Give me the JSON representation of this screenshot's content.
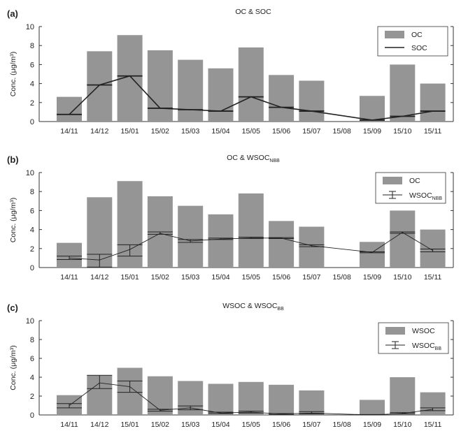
{
  "chart_data": [
    {
      "type": "bar",
      "panel_label": "(a)",
      "title": "OC & SOC",
      "ylabel": "Conc. (μg/m³)",
      "xlabel": "",
      "ylim": [
        0,
        10
      ],
      "yticks": [
        0,
        2,
        4,
        6,
        8,
        10
      ],
      "categories": [
        "14/11",
        "14/12",
        "15/01",
        "15/02",
        "15/03",
        "15/04",
        "15/05",
        "15/06",
        "15/07",
        "15/08",
        "15/09",
        "15/10",
        "15/11"
      ],
      "legend_position": "top-right",
      "grid": false,
      "series": [
        {
          "name": "OC",
          "kind": "bar",
          "color": "#959595",
          "values": [
            2.6,
            7.4,
            9.1,
            7.5,
            6.5,
            5.6,
            7.8,
            4.9,
            4.3,
            null,
            2.7,
            6.0,
            4.0
          ]
        },
        {
          "name": "SOC",
          "kind": "line",
          "color": "#222222",
          "values": [
            0.75,
            3.85,
            4.8,
            1.4,
            1.25,
            1.1,
            2.6,
            1.5,
            1.1,
            null,
            0.15,
            0.55,
            1.1
          ]
        }
      ]
    },
    {
      "type": "bar",
      "panel_label": "(b)",
      "title": "OC & WSOC",
      "title_subscript": "NBB",
      "ylabel": "Conc. (μg/m³)",
      "xlabel": "",
      "ylim": [
        0,
        10
      ],
      "yticks": [
        0,
        2,
        4,
        6,
        8,
        10
      ],
      "categories": [
        "14/11",
        "14/12",
        "15/01",
        "15/02",
        "15/03",
        "15/04",
        "15/05",
        "15/06",
        "15/07",
        "15/08",
        "15/09",
        "15/10",
        "15/11"
      ],
      "legend_position": "top-right",
      "grid": false,
      "series": [
        {
          "name": "OC",
          "kind": "bar",
          "color": "#959595",
          "values": [
            2.6,
            7.4,
            9.1,
            7.5,
            6.5,
            5.6,
            7.8,
            4.9,
            4.3,
            null,
            2.7,
            6.0,
            4.0
          ]
        },
        {
          "name": "WSOC",
          "name_subscript": "NBB",
          "kind": "line-errorbar",
          "color": "#222222",
          "values": [
            1.0,
            0.8,
            1.9,
            3.6,
            2.8,
            3.0,
            3.1,
            3.1,
            2.3,
            null,
            1.6,
            3.7,
            1.8
          ],
          "error_low": [
            0.85,
            0.05,
            1.2,
            3.5,
            2.65,
            2.95,
            3.05,
            3.05,
            2.2,
            null,
            1.55,
            3.6,
            1.65
          ],
          "error_high": [
            1.2,
            1.4,
            2.4,
            3.75,
            2.95,
            3.1,
            3.2,
            3.15,
            2.4,
            null,
            1.65,
            3.75,
            1.95
          ]
        }
      ]
    },
    {
      "type": "bar",
      "panel_label": "(c)",
      "title": "WSOC & WSOC",
      "title_subscript": "BB",
      "ylabel": "Conc. (μg/m³)",
      "xlabel": "",
      "ylim": [
        0,
        10
      ],
      "yticks": [
        0,
        2,
        4,
        6,
        8,
        10
      ],
      "categories": [
        "14/11",
        "14/12",
        "15/01",
        "15/02",
        "15/03",
        "15/04",
        "15/05",
        "15/06",
        "15/07",
        "15/08",
        "15/09",
        "15/10",
        "15/11"
      ],
      "legend_position": "top-right",
      "grid": false,
      "series": [
        {
          "name": "WSOC",
          "kind": "bar",
          "color": "#959595",
          "values": [
            2.1,
            4.2,
            5.0,
            4.1,
            3.6,
            3.3,
            3.5,
            3.2,
            2.6,
            null,
            1.6,
            4.0,
            2.4
          ]
        },
        {
          "name": "WSOC",
          "name_subscript": "BB",
          "kind": "line-errorbar",
          "color": "#222222",
          "values": [
            1.0,
            3.4,
            3.0,
            0.5,
            0.75,
            0.2,
            0.3,
            0.1,
            0.2,
            null,
            0.0,
            0.15,
            0.6
          ],
          "error_low": [
            0.75,
            2.8,
            2.4,
            0.4,
            0.55,
            0.15,
            0.2,
            0.05,
            0.1,
            null,
            0.0,
            0.1,
            0.45
          ],
          "error_high": [
            1.2,
            4.2,
            3.6,
            0.6,
            0.95,
            0.3,
            0.4,
            0.15,
            0.35,
            null,
            0.05,
            0.25,
            0.75
          ]
        }
      ]
    }
  ]
}
